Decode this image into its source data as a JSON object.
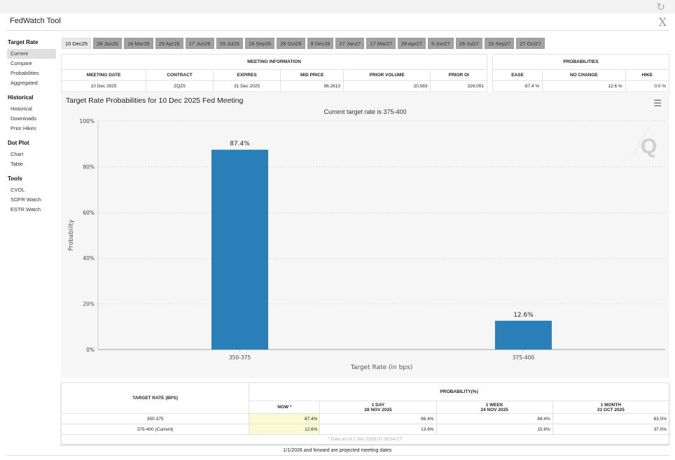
{
  "app": {
    "title": "FedWatch Tool"
  },
  "icons": {
    "refresh": "refresh-icon",
    "close": "x-close-icon",
    "menu": "hamburger-menu-icon"
  },
  "sidebar": [
    {
      "heading": "Target Rate",
      "items": [
        "Current",
        "Compare",
        "Probabilities",
        "Aggregated"
      ],
      "active": "Current"
    },
    {
      "heading": "Historical",
      "items": [
        "Historical",
        "Downloads",
        "Prior Hikes"
      ]
    },
    {
      "heading": "Dot Plot",
      "items": [
        "Chart",
        "Table"
      ]
    },
    {
      "heading": "Tools",
      "items": [
        "CVOL",
        "SOFR Watch",
        "ESTR Watch"
      ]
    }
  ],
  "tabs": [
    "10 Dec25",
    "28 Jan26",
    "18 Mar26",
    "29 Apr26",
    "17 Jun26",
    "29 Jul26",
    "16 Sep26",
    "28 Oct26",
    "9 Dec26",
    "27 Jan27",
    "17 Mar27",
    "28 Apr27",
    "9 Jun27",
    "28 Jul27",
    "15 Sep27",
    "27 Oct27"
  ],
  "active_tab": "10 Dec25",
  "meeting_info": {
    "title": "MEETING INFORMATION",
    "headers": [
      "MEETING DATE",
      "CONTRACT",
      "EXPIRES",
      "MID PRICE",
      "PRIOR VOLUME",
      "PRIOR OI"
    ],
    "values": [
      "10 Dec 2025",
      "ZQZ5",
      "31 Dec 2025",
      "96.2613",
      "20,583",
      "326,091"
    ]
  },
  "probabilities": {
    "title": "PROBABILITIES",
    "headers": [
      "EASE",
      "NO CHANGE",
      "HIKE"
    ],
    "values": [
      "87.4 %",
      "12.6 %",
      "0.0 %"
    ]
  },
  "chart_data": {
    "type": "bar",
    "title": "Target Rate Probabilities for 10 Dec 2025 Fed Meeting",
    "subtitle": "Current target rate is 375-400",
    "xlabel": "Target Rate (in bps)",
    "ylabel": "Probability",
    "categories": [
      "350-375",
      "375-400"
    ],
    "values": [
      87.4,
      12.6
    ],
    "data_labels": [
      "87.4%",
      "12.6%"
    ],
    "ylim": [
      0,
      100
    ],
    "yticks": [
      "0%",
      "20%",
      "40%",
      "60%",
      "80%",
      "100%"
    ],
    "grid": true,
    "legend": "none",
    "bar_color": "#2a7fb8"
  },
  "history": {
    "col_header": "TARGET RATE (BPS)",
    "group_header": "PROBABILITY(%)",
    "columns": [
      {
        "l1": "NOW *",
        "l2": ""
      },
      {
        "l1": "1 DAY",
        "l2": "28 NOV 2025"
      },
      {
        "l1": "1 WEEK",
        "l2": "24 NOV 2025"
      },
      {
        "l1": "1 MONTH",
        "l2": "31 OCT 2025"
      }
    ],
    "rows": [
      {
        "rate": "350-375",
        "vals": [
          "87.4%",
          "86.4%",
          "84.4%",
          "63.0%"
        ]
      },
      {
        "rate": "375-400 (Current)",
        "vals": [
          "12.6%",
          "13.6%",
          "15.6%",
          "37.0%"
        ]
      }
    ],
    "note": "* Data as of 1 Dec 2025 07:35:54 CT"
  },
  "footer": "1/1/2026 and forward are projected meeting dates"
}
